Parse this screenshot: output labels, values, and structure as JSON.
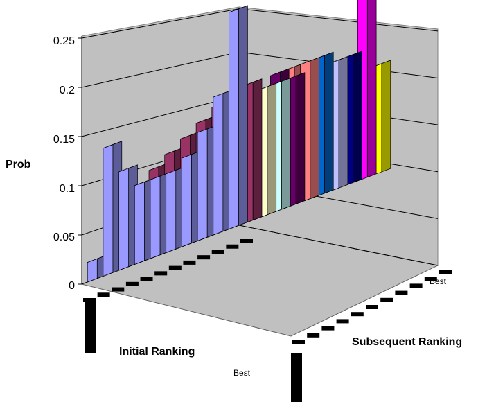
{
  "chart_data": {
    "type": "bar3d",
    "ylabel": "Prob",
    "xlabel": "Initial Ranking",
    "zlabel": "Subsequent Ranking",
    "ylim": [
      0,
      0.25
    ],
    "y_ticks": [
      "0",
      "0.05",
      "0.1",
      "0.15",
      "0.2",
      "0.25"
    ],
    "x_end_label": "Best",
    "z_end_label": "Best",
    "grid": true,
    "rows": [
      {
        "color": "#FFFF00",
        "values": [
          0.005,
          0.03,
          0.06,
          0.07,
          0.09,
          0.1,
          0.11,
          0.12,
          0.13,
          0.11
        ]
      },
      {
        "color": "#FF00FF",
        "values": [
          0.06,
          0.02,
          0.05,
          0.06,
          0.07,
          0.09,
          0.1,
          0.12,
          0.13,
          0.24
        ]
      },
      {
        "color": "#000080",
        "values": [
          0.07,
          0.08,
          0.07,
          0.09,
          0.1,
          0.11,
          0.12,
          0.12,
          0.13,
          0.13
        ]
      },
      {
        "color": "#C0C0FF",
        "values": [
          0.03,
          0.05,
          0.06,
          0.08,
          0.09,
          0.1,
          0.11,
          0.12,
          0.11,
          0.13
        ]
      },
      {
        "color": "#0066CC",
        "values": [
          0.02,
          0.06,
          0.07,
          0.08,
          0.09,
          0.1,
          0.11,
          0.12,
          0.13,
          0.14
        ]
      },
      {
        "color": "#FF8080",
        "values": [
          0.02,
          0.07,
          0.08,
          0.09,
          0.1,
          0.11,
          0.12,
          0.13,
          0.14,
          0.14
        ]
      },
      {
        "color": "#660066",
        "values": [
          0.02,
          0.06,
          0.07,
          0.09,
          0.1,
          0.11,
          0.12,
          0.13,
          0.14,
          0.13
        ]
      },
      {
        "color": "#CCFFFF",
        "values": [
          0.02,
          0.06,
          0.07,
          0.08,
          0.09,
          0.1,
          0.11,
          0.12,
          0.12,
          0.13
        ]
      },
      {
        "color": "#FFFFCC",
        "values": [
          0.02,
          0.07,
          0.08,
          0.09,
          0.1,
          0.11,
          0.12,
          0.13,
          0.13,
          0.13
        ]
      },
      {
        "color": "#993366",
        "values": [
          0.02,
          0.09,
          0.08,
          0.09,
          0.1,
          0.11,
          0.12,
          0.13,
          0.14,
          0.14
        ]
      },
      {
        "color": "#9999FF",
        "values": [
          0.02,
          0.13,
          0.1,
          0.08,
          0.08,
          0.08,
          0.09,
          0.11,
          0.14,
          0.22
        ]
      }
    ]
  }
}
